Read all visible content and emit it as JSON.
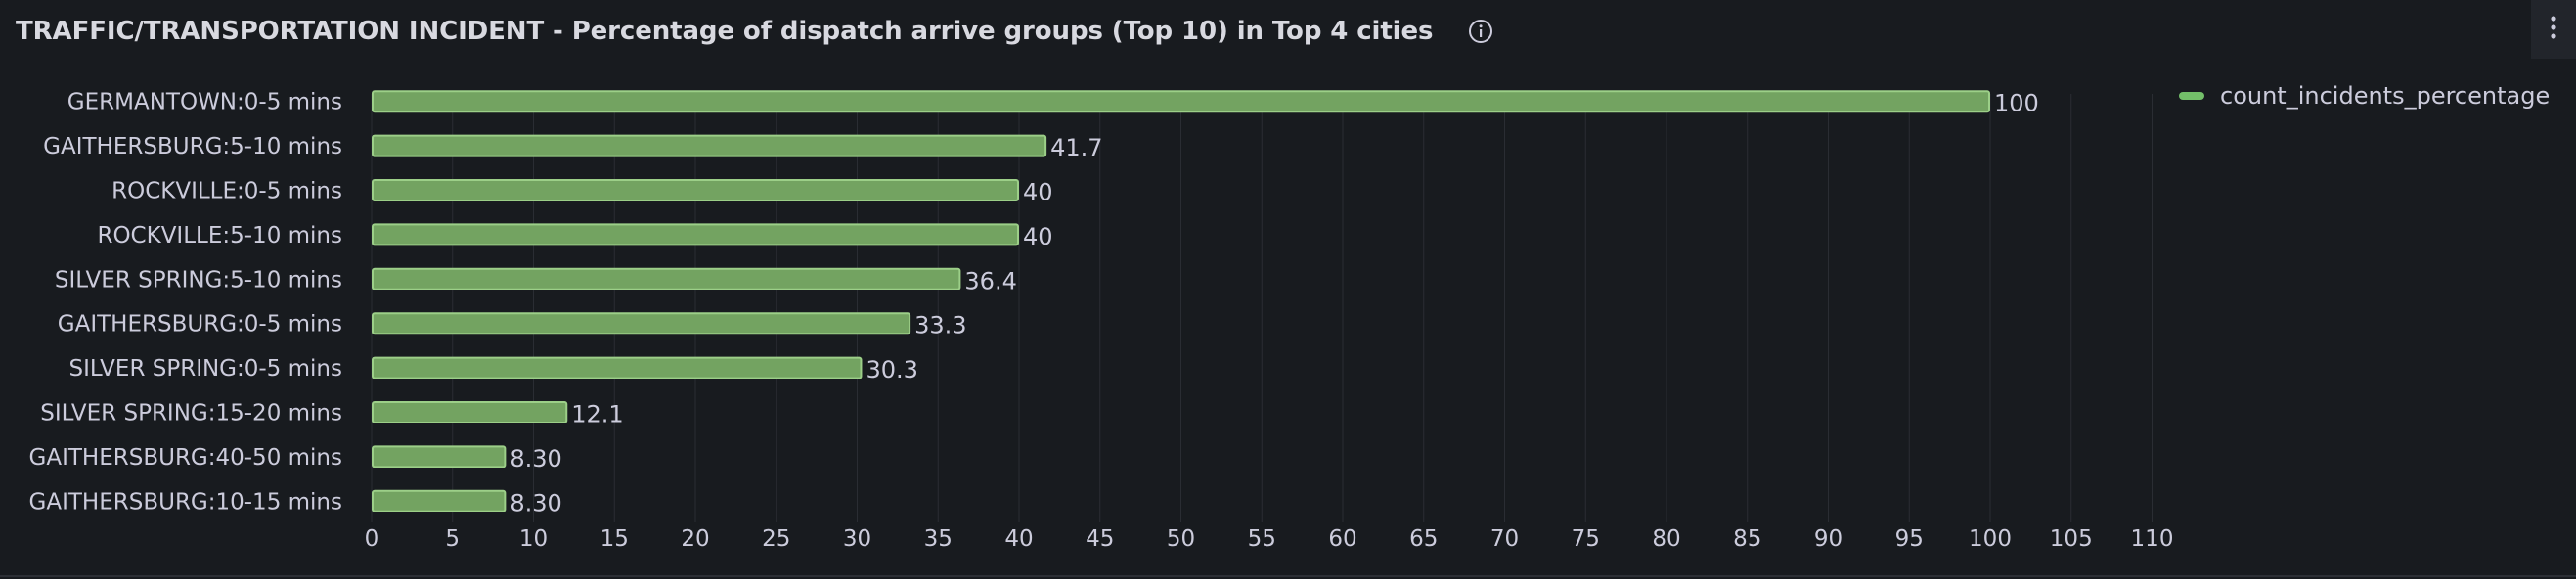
{
  "panel": {
    "title": "TRAFFIC/TRANSPORTATION INCIDENT - Percentage of dispatch arrive groups (Top 10) in Top 4 cities",
    "info_icon": "info-circle-icon",
    "menu_icon": "vertical-ellipsis-icon"
  },
  "colors": {
    "background": "#181b1f",
    "bar_fill": "#73a361",
    "bar_stroke": "#9ccf88",
    "grid": "#2a2d33",
    "text": "#ccccdc"
  },
  "legend": {
    "placement": "top-right",
    "items": [
      {
        "label": "count_incidents_percentage",
        "color": "#73bf69"
      }
    ]
  },
  "chart_data": {
    "type": "bar",
    "orientation": "horizontal",
    "categories": [
      "GERMANTOWN:0-5 mins",
      "GAITHERSBURG:5-10 mins",
      "ROCKVILLE:0-5 mins",
      "ROCKVILLE:5-10 mins",
      "SILVER SPRING:5-10 mins",
      "GAITHERSBURG:0-5 mins",
      "SILVER SPRING:0-5 mins",
      "SILVER SPRING:15-20 mins",
      "GAITHERSBURG:40-50 mins",
      "GAITHERSBURG:10-15 mins"
    ],
    "series": [
      {
        "name": "count_incidents_percentage",
        "values": [
          100,
          41.7,
          40,
          40,
          36.4,
          33.3,
          30.3,
          12.1,
          8.3,
          8.3
        ],
        "labels": [
          "100",
          "41.7",
          "40",
          "40",
          "36.4",
          "33.3",
          "30.3",
          "12.1",
          "8.30",
          "8.30"
        ]
      }
    ],
    "xlim": [
      0,
      110
    ],
    "xticks": [
      "0",
      "5",
      "10",
      "15",
      "20",
      "25",
      "30",
      "35",
      "40",
      "45",
      "50",
      "55",
      "60",
      "65",
      "70",
      "75",
      "80",
      "85",
      "90",
      "95",
      "100",
      "105",
      "110"
    ],
    "title": "",
    "xlabel": "",
    "ylabel": "",
    "grid": true
  }
}
